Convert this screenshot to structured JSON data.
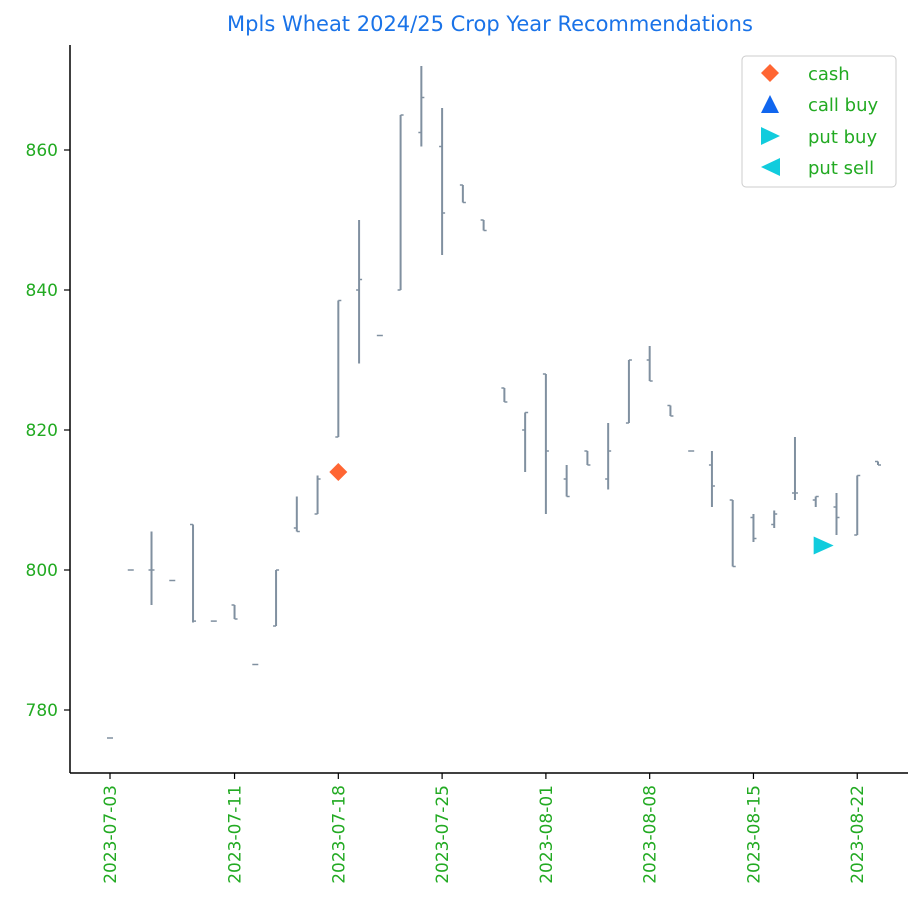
{
  "chart_data": {
    "type": "ohlc",
    "title": "Mpls Wheat 2024/25 Crop Year Recommendations",
    "xlabel": "",
    "ylabel": "",
    "x_tick_labels": [
      "2023-07-03",
      "2023-07-11",
      "2023-07-18",
      "2023-07-25",
      "2023-08-01",
      "2023-08-08",
      "2023-08-15",
      "2023-08-22"
    ],
    "y_ticks": [
      780,
      800,
      820,
      840,
      860
    ],
    "xlim": [
      "2023-07-03",
      "2023-08-27"
    ],
    "ylim": [
      771,
      875
    ],
    "grid": false,
    "legend_position": "top-right",
    "colors": {
      "title": "#1a73e8",
      "ticks": "#22aa22",
      "bars": "#8090a0",
      "cash": "#ff6633",
      "call_buy": "#1166ee",
      "put_buy": "#11ccdd",
      "put_sell": "#11ccdd"
    },
    "bars": [
      {
        "date": "2023-07-03",
        "open": 776,
        "high": 776,
        "low": 776,
        "close": 776
      },
      {
        "date": "2023-07-04",
        "open": 800,
        "high": 800,
        "low": 800,
        "close": 800
      },
      {
        "date": "2023-07-05",
        "open": 800,
        "high": 805.5,
        "low": 795,
        "close": 800
      },
      {
        "date": "2023-07-06",
        "open": 798.5,
        "high": 798.5,
        "low": 798.5,
        "close": 798.5
      },
      {
        "date": "2023-07-07",
        "open": 806.5,
        "high": 806.5,
        "low": 792.5,
        "close": 792.7
      },
      {
        "date": "2023-07-10",
        "open": 792.7,
        "high": 792.7,
        "low": 792.7,
        "close": 792.7
      },
      {
        "date": "2023-07-11",
        "open": 795,
        "high": 795,
        "low": 793,
        "close": 793
      },
      {
        "date": "2023-07-12",
        "open": 786.5,
        "high": 786.5,
        "low": 786.5,
        "close": 786.5
      },
      {
        "date": "2023-07-13",
        "open": 792,
        "high": 800,
        "low": 792,
        "close": 800
      },
      {
        "date": "2023-07-14",
        "open": 806,
        "high": 810.5,
        "low": 805.5,
        "close": 805.5
      },
      {
        "date": "2023-07-17",
        "open": 808,
        "high": 813.5,
        "low": 808,
        "close": 813
      },
      {
        "date": "2023-07-18",
        "open": 819,
        "high": 838.5,
        "low": 819,
        "close": 838.5
      },
      {
        "date": "2023-07-19",
        "open": 840,
        "high": 850,
        "low": 829.5,
        "close": 841.5
      },
      {
        "date": "2023-07-20",
        "open": 833.5,
        "high": 833.5,
        "low": 833.5,
        "close": 833.5
      },
      {
        "date": "2023-07-21",
        "open": 840,
        "high": 865,
        "low": 840,
        "close": 865
      },
      {
        "date": "2023-07-24",
        "open": 862.5,
        "high": 872,
        "low": 860.5,
        "close": 867.5
      },
      {
        "date": "2023-07-25",
        "open": 860.5,
        "high": 866,
        "low": 845,
        "close": 851
      },
      {
        "date": "2023-07-26",
        "open": 855,
        "high": 855,
        "low": 852.5,
        "close": 852.5
      },
      {
        "date": "2023-07-27",
        "open": 850,
        "high": 850,
        "low": 848.5,
        "close": 848.5
      },
      {
        "date": "2023-07-28",
        "open": 826,
        "high": 826,
        "low": 824,
        "close": 824
      },
      {
        "date": "2023-07-31",
        "open": 820,
        "high": 822.5,
        "low": 814,
        "close": 822.5
      },
      {
        "date": "2023-08-01",
        "open": 828,
        "high": 828,
        "low": 808,
        "close": 817
      },
      {
        "date": "2023-08-02",
        "open": 813,
        "high": 815,
        "low": 810.5,
        "close": 810.5
      },
      {
        "date": "2023-08-03",
        "open": 817,
        "high": 817,
        "low": 815,
        "close": 815
      },
      {
        "date": "2023-08-04",
        "open": 813,
        "high": 821,
        "low": 811.5,
        "close": 817
      },
      {
        "date": "2023-08-07",
        "open": 821,
        "high": 830,
        "low": 821,
        "close": 830
      },
      {
        "date": "2023-08-08",
        "open": 830,
        "high": 832,
        "low": 827,
        "close": 827
      },
      {
        "date": "2023-08-09",
        "open": 823.5,
        "high": 823.5,
        "low": 822,
        "close": 822
      },
      {
        "date": "2023-08-10",
        "open": 817,
        "high": 817,
        "low": 817,
        "close": 817
      },
      {
        "date": "2023-08-11",
        "open": 815,
        "high": 817,
        "low": 809,
        "close": 812
      },
      {
        "date": "2023-08-14",
        "open": 810,
        "high": 810,
        "low": 800.5,
        "close": 800.5
      },
      {
        "date": "2023-08-15",
        "open": 807.5,
        "high": 808,
        "low": 804,
        "close": 804.5
      },
      {
        "date": "2023-08-16",
        "open": 806.5,
        "high": 808.5,
        "low": 806,
        "close": 808
      },
      {
        "date": "2023-08-17",
        "open": 811,
        "high": 819,
        "low": 810,
        "close": 811
      },
      {
        "date": "2023-08-18",
        "open": 810,
        "high": 810.5,
        "low": 809,
        "close": 810.5
      },
      {
        "date": "2023-08-21",
        "open": 809,
        "high": 811,
        "low": 805,
        "close": 807.5
      },
      {
        "date": "2023-08-22",
        "open": 805,
        "high": 813.5,
        "low": 805,
        "close": 813.5
      },
      {
        "date": "2023-08-23",
        "open": 815.5,
        "high": 815.5,
        "low": 815,
        "close": 815
      }
    ],
    "markers": [
      {
        "type": "cash",
        "date": "2023-07-18",
        "value": 814
      },
      {
        "type": "put_buy",
        "date": "2023-08-19",
        "value": 803.5
      }
    ],
    "legend": [
      {
        "key": "cash",
        "label": "cash",
        "symbol": "diamond"
      },
      {
        "key": "call_buy",
        "label": "call buy",
        "symbol": "triangle-up"
      },
      {
        "key": "put_buy",
        "label": "put buy",
        "symbol": "triangle-right"
      },
      {
        "key": "put_sell",
        "label": "put sell",
        "symbol": "triangle-left"
      }
    ]
  }
}
